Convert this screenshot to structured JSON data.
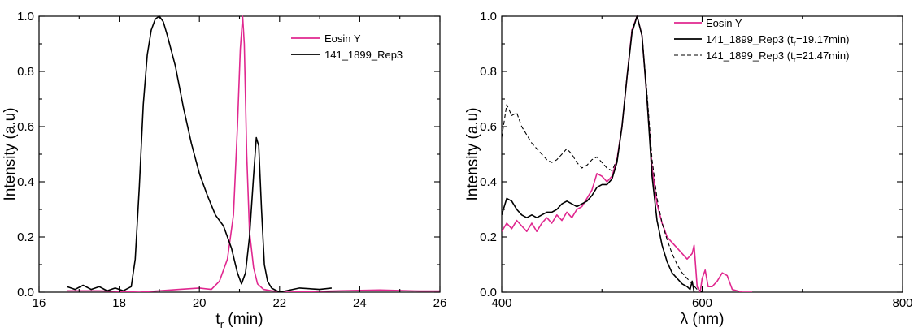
{
  "chart_data": [
    {
      "type": "line",
      "xlabel": "t",
      "xlabel_sub": "r",
      "xlabel_unit": " (min)",
      "ylabel": "Intensity (a.u)",
      "xlim": [
        16,
        26
      ],
      "ylim": [
        0,
        1.0
      ],
      "xticks": [
        16,
        18,
        20,
        22,
        24,
        26
      ],
      "yticks": [
        0.0,
        0.2,
        0.4,
        0.6,
        0.8,
        1.0
      ],
      "xtick_labels": [
        "16",
        "18",
        "20",
        "22",
        "24",
        "26"
      ],
      "ytick_labels": [
        "0.0",
        "0.2",
        "0.4",
        "0.6",
        "0.8",
        "1.0"
      ],
      "grid": false,
      "legend_position": "top-right",
      "series": [
        {
          "name": "Eosin Y",
          "color": "#e0278f",
          "dash": "solid",
          "x": [
            16.7,
            17.5,
            18.5,
            19.5,
            20.0,
            20.3,
            20.5,
            20.7,
            20.85,
            20.95,
            21.02,
            21.08,
            21.12,
            21.18,
            21.25,
            21.35,
            21.45,
            21.6,
            21.8,
            22.2,
            23.5,
            24.5,
            25.5,
            26.0
          ],
          "y": [
            0.005,
            0.005,
            0.0,
            0.01,
            0.015,
            0.01,
            0.04,
            0.12,
            0.28,
            0.6,
            0.88,
            1.0,
            0.9,
            0.5,
            0.22,
            0.09,
            0.03,
            0.01,
            0.005,
            0.0,
            0.005,
            0.008,
            0.004,
            0.004
          ]
        },
        {
          "name": "141_1899_Rep3",
          "color": "#000000",
          "dash": "solid",
          "x": [
            16.7,
            16.9,
            17.1,
            17.3,
            17.5,
            17.7,
            17.9,
            18.1,
            18.3,
            18.4,
            18.5,
            18.6,
            18.7,
            18.8,
            18.9,
            19.0,
            19.1,
            19.2,
            19.4,
            19.6,
            19.8,
            20.0,
            20.2,
            20.4,
            20.6,
            20.8,
            20.95,
            21.05,
            21.15,
            21.25,
            21.35,
            21.42,
            21.48,
            21.55,
            21.62,
            21.7,
            21.8,
            22.0,
            22.5,
            23.0,
            23.3
          ],
          "y": [
            0.02,
            0.01,
            0.025,
            0.01,
            0.02,
            0.005,
            0.015,
            0.005,
            0.02,
            0.12,
            0.38,
            0.68,
            0.86,
            0.95,
            0.99,
            1.0,
            0.98,
            0.93,
            0.82,
            0.67,
            0.54,
            0.43,
            0.35,
            0.28,
            0.24,
            0.16,
            0.07,
            0.03,
            0.07,
            0.2,
            0.42,
            0.56,
            0.53,
            0.3,
            0.1,
            0.04,
            0.015,
            0.0,
            0.015,
            0.01,
            0.015
          ]
        }
      ]
    },
    {
      "type": "line",
      "xlabel": "λ (nm)",
      "ylabel": "Intensity (a.u)",
      "xlim": [
        400,
        800
      ],
      "ylim": [
        0,
        1.0
      ],
      "xticks": [
        400,
        600,
        800
      ],
      "yticks": [
        0.0,
        0.2,
        0.4,
        0.6,
        0.8,
        1.0
      ],
      "xtick_labels": [
        "400",
        "600",
        "800"
      ],
      "ytick_labels": [
        "0.0",
        "0.2",
        "0.4",
        "0.6",
        "0.8",
        "1.0"
      ],
      "grid": false,
      "legend_position": "top-right",
      "series": [
        {
          "name": "Eosin Y",
          "color": "#e0278f",
          "dash": "solid",
          "x": [
            400,
            405,
            410,
            415,
            420,
            425,
            430,
            435,
            440,
            445,
            450,
            455,
            460,
            465,
            470,
            475,
            480,
            485,
            490,
            495,
            500,
            505,
            510,
            515,
            520,
            525,
            530,
            535,
            540,
            545,
            550,
            555,
            560,
            565,
            570,
            575,
            580,
            585,
            590,
            592,
            595,
            598,
            600,
            603,
            606,
            610,
            615,
            620,
            625,
            630,
            640,
            650
          ],
          "y": [
            0.22,
            0.25,
            0.23,
            0.26,
            0.24,
            0.22,
            0.25,
            0.22,
            0.25,
            0.27,
            0.25,
            0.28,
            0.26,
            0.29,
            0.27,
            0.3,
            0.31,
            0.34,
            0.37,
            0.43,
            0.42,
            0.4,
            0.42,
            0.48,
            0.6,
            0.78,
            0.95,
            1.0,
            0.93,
            0.7,
            0.45,
            0.32,
            0.25,
            0.2,
            0.18,
            0.16,
            0.14,
            0.12,
            0.14,
            0.17,
            0.02,
            0.0,
            0.05,
            0.08,
            0.02,
            0.02,
            0.04,
            0.07,
            0.06,
            0.01,
            0.0,
            0.0
          ]
        },
        {
          "name": "141_1899_Rep3 (t",
          "name_sub": "r",
          "name_suffix": "=19.17min)",
          "color": "#000000",
          "dash": "solid",
          "x": [
            400,
            405,
            410,
            415,
            420,
            425,
            430,
            435,
            440,
            445,
            450,
            455,
            460,
            465,
            470,
            475,
            480,
            485,
            490,
            495,
            500,
            505,
            510,
            515,
            520,
            525,
            530,
            535,
            540,
            545,
            550,
            555,
            560,
            565,
            570,
            575,
            580,
            585,
            588,
            590,
            592
          ],
          "y": [
            0.28,
            0.34,
            0.33,
            0.3,
            0.28,
            0.27,
            0.28,
            0.27,
            0.28,
            0.29,
            0.29,
            0.3,
            0.32,
            0.33,
            0.32,
            0.31,
            0.32,
            0.33,
            0.35,
            0.38,
            0.39,
            0.39,
            0.41,
            0.47,
            0.6,
            0.78,
            0.94,
            1.0,
            0.93,
            0.7,
            0.42,
            0.26,
            0.17,
            0.11,
            0.07,
            0.05,
            0.03,
            0.02,
            0.01,
            0.04,
            0.0
          ]
        },
        {
          "name": "141_1899_Rep3 (t",
          "name_sub": "r",
          "name_suffix": "=21.47min)",
          "color": "#000000",
          "dash": "dashed",
          "x": [
            400,
            405,
            410,
            415,
            420,
            425,
            430,
            435,
            440,
            445,
            450,
            455,
            460,
            465,
            470,
            475,
            480,
            485,
            490,
            495,
            500,
            505,
            510,
            515,
            520,
            525,
            530,
            535,
            540,
            545,
            550,
            555,
            560,
            565,
            570,
            575,
            580,
            585,
            590,
            595,
            600
          ],
          "y": [
            0.56,
            0.68,
            0.64,
            0.65,
            0.6,
            0.57,
            0.54,
            0.52,
            0.5,
            0.48,
            0.47,
            0.48,
            0.5,
            0.52,
            0.5,
            0.47,
            0.45,
            0.46,
            0.48,
            0.49,
            0.47,
            0.45,
            0.44,
            0.48,
            0.6,
            0.78,
            0.95,
            1.0,
            0.93,
            0.72,
            0.48,
            0.34,
            0.25,
            0.19,
            0.14,
            0.1,
            0.07,
            0.05,
            0.03,
            0.01,
            0.0
          ]
        }
      ]
    }
  ]
}
